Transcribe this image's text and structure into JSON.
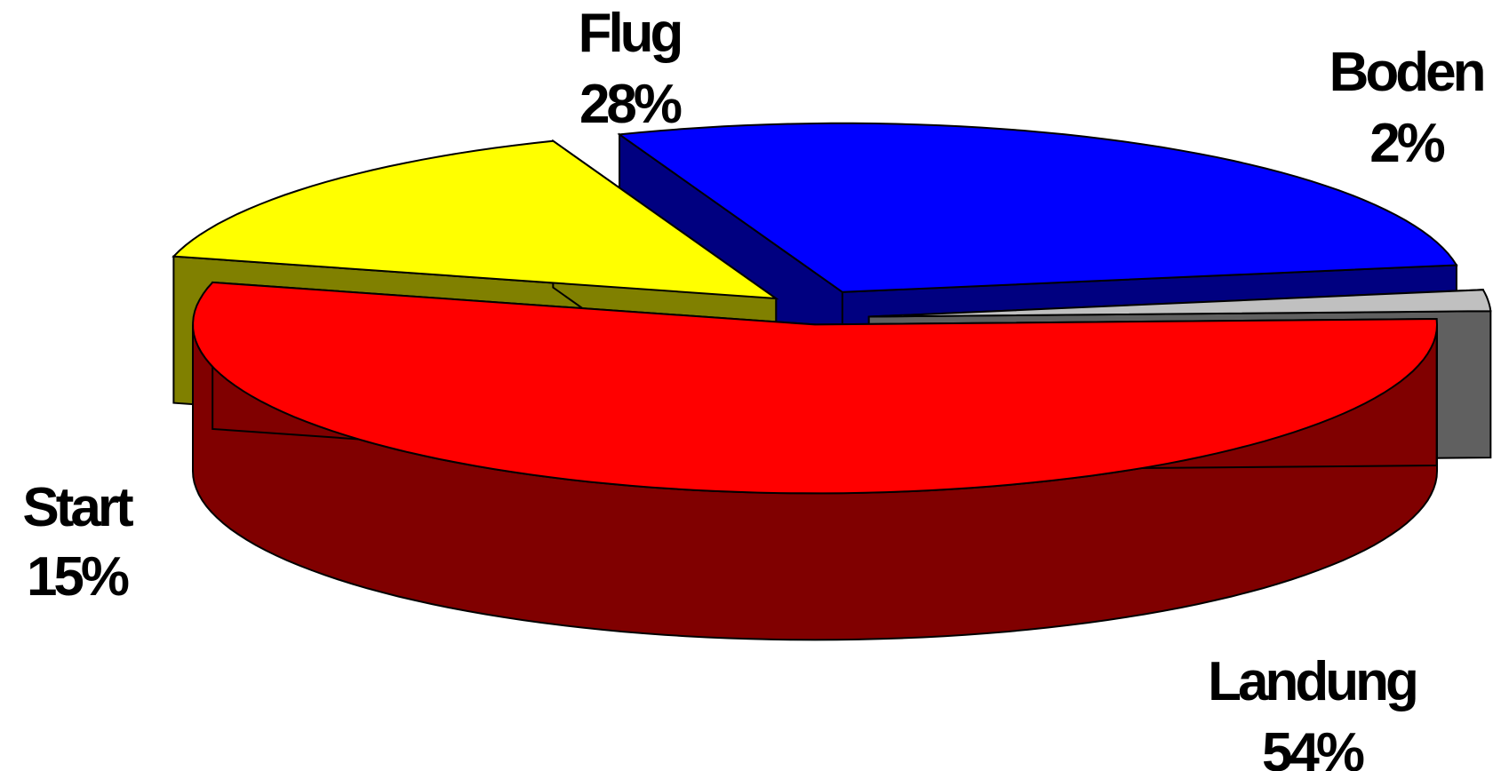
{
  "chart_data": {
    "type": "pie",
    "title": "",
    "slices": [
      {
        "label": "Flug",
        "value": 28,
        "value_text": "28%",
        "color": "#0000FF",
        "side_color": "#000080"
      },
      {
        "label": "Boden",
        "value": 2,
        "value_text": "2%",
        "color": "#C0C0C0",
        "side_color": "#606060"
      },
      {
        "label": "Landung",
        "value": 54,
        "value_text": "54%",
        "color": "#FF0000",
        "side_color": "#800000"
      },
      {
        "label": "Start",
        "value": 15,
        "value_text": "15%",
        "color": "#FFFF00",
        "side_color": "#808000"
      }
    ],
    "style": "3d-exploded"
  }
}
